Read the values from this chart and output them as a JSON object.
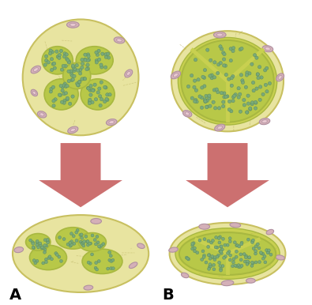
{
  "background_color": "#ffffff",
  "epineurium_color": "#e8e4a0",
  "epineurium_outer_color": "#c8c060",
  "fascicle_outer_color": "#a8b840",
  "fascicle_inner_color": "#b8c848",
  "axon_dot_color": "#7aaa78",
  "axon_dot_light": "#98c890",
  "perineurium_color": "#c8d050",
  "small_oval_color": "#d4b0b8",
  "small_oval_edge": "#b090a0",
  "arrow_color": "#cc7070",
  "label_A": "A",
  "label_B": "B",
  "label_fontsize": 14,
  "title": ""
}
